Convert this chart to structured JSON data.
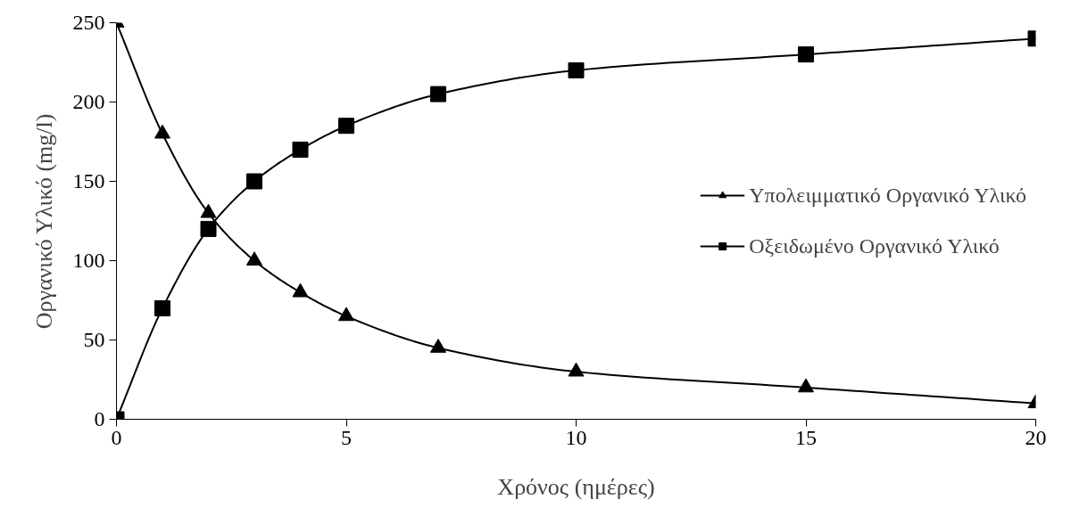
{
  "chart_data": {
    "type": "line",
    "xlabel": "Χρόνος (ημέρες)",
    "ylabel": "Οργανικό Υλικό (mg/l)",
    "x": [
      0,
      1,
      2,
      3,
      4,
      5,
      7,
      10,
      15,
      20
    ],
    "series": [
      {
        "name": "Υπολειμματικό Οργανικό Υλικό",
        "color": "#000000",
        "marker": "triangle",
        "values": [
          250,
          180,
          130,
          100,
          80,
          65,
          45,
          30,
          20,
          10
        ]
      },
      {
        "name": "Οξειδωμένο Οργανικό Υλικό",
        "color": "#000000",
        "marker": "square",
        "values": [
          0,
          70,
          120,
          150,
          170,
          185,
          205,
          220,
          230,
          240
        ]
      }
    ],
    "xlim": [
      0,
      20
    ],
    "xticks": [
      0,
      5,
      10,
      15,
      20
    ],
    "ylim": [
      0,
      250
    ],
    "yticks": [
      0,
      50,
      100,
      150,
      200,
      250
    ],
    "grid": false,
    "legend": "right",
    "line_style": "solid"
  }
}
